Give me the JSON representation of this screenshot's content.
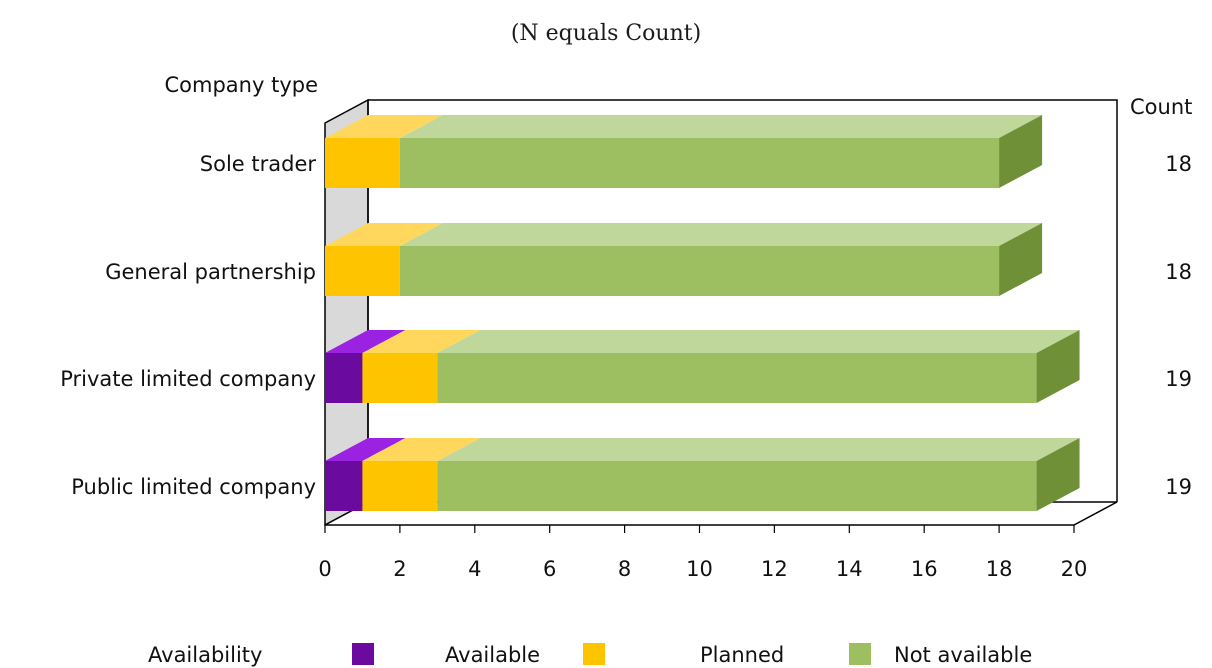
{
  "chart_data": {
    "type": "bar",
    "subtitle": "(N equals Count)",
    "ylabel": "Company type",
    "count_label": "Count",
    "categories": [
      "Sole trader",
      "General partnership",
      "Private limited company",
      "Public limited company"
    ],
    "counts": [
      "18",
      "18",
      "19",
      "19"
    ],
    "series": [
      {
        "name": "Available",
        "values": [
          0,
          0,
          1,
          1
        ]
      },
      {
        "name": "Planned",
        "values": [
          2,
          2,
          2,
          2
        ]
      },
      {
        "name": "Not available",
        "values": [
          16,
          16,
          16,
          16
        ]
      }
    ],
    "xlim": [
      0,
      20
    ],
    "xticks": [
      "0",
      "2",
      "4",
      "6",
      "8",
      "10",
      "12",
      "14",
      "16",
      "18",
      "20"
    ],
    "legend_title": "Availability",
    "legend_position": "bottom",
    "colors": {
      "Available": {
        "front": "#6a0a9e",
        "top": "#9b22e0",
        "side": "#4c0772"
      },
      "Planned": {
        "front": "#ffc400",
        "top": "#ffd75c",
        "side": "#c79a00"
      },
      "Not available": {
        "front": "#9dbf62",
        "top": "#c0d79b",
        "side": "#6f9036"
      }
    }
  }
}
